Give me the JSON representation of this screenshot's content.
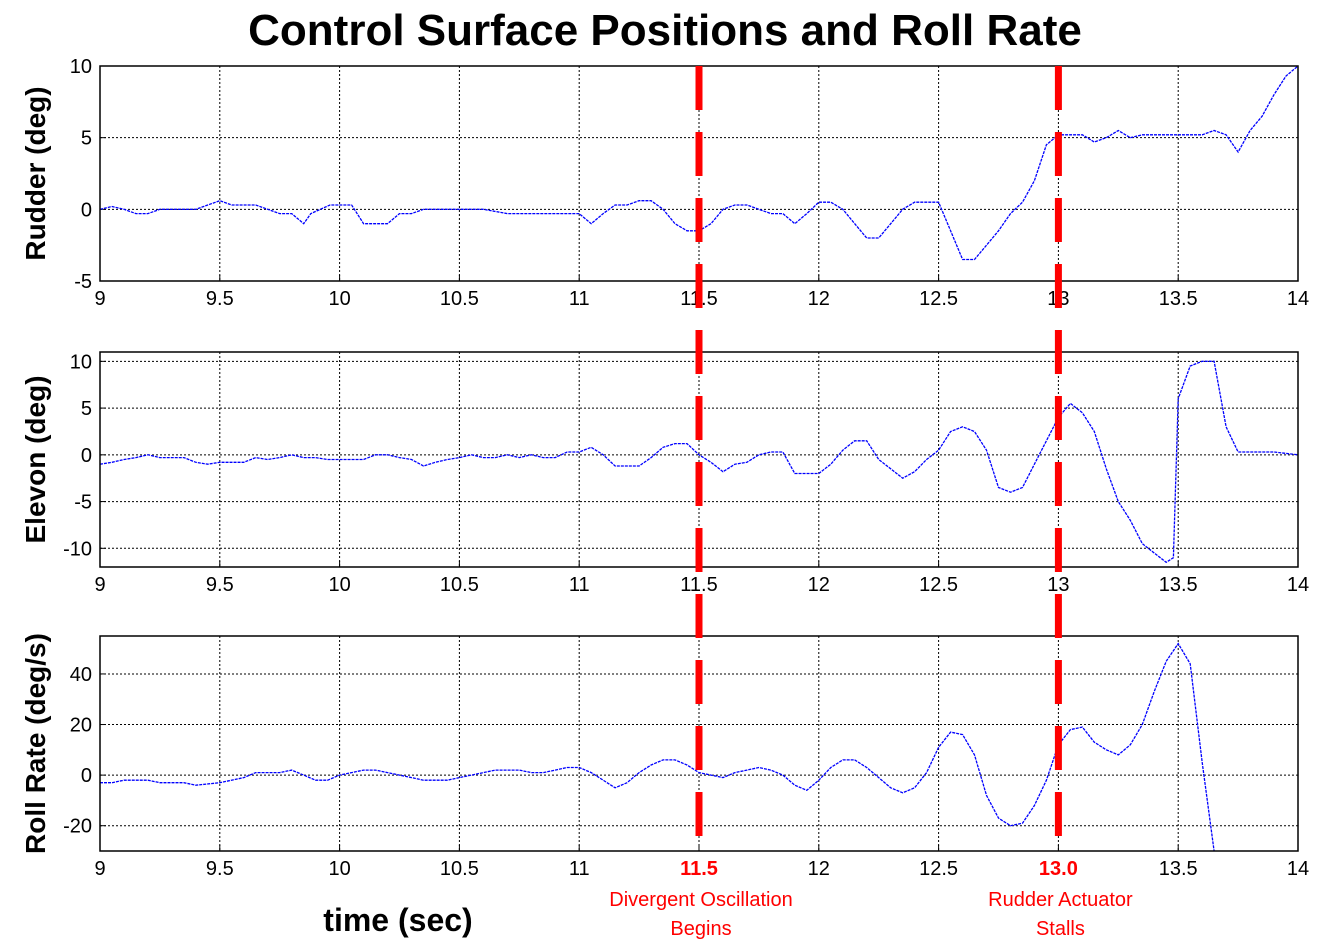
{
  "title": "Control Surface Positions and Roll Rate",
  "chart_data": [
    {
      "type": "line",
      "ylabel": "Rudder (deg)",
      "xlim": [
        9,
        14
      ],
      "ylim": [
        -5,
        10
      ],
      "xticks": [
        "9",
        "9.5",
        "10",
        "10.5",
        "11",
        "11.5",
        "12",
        "12.5",
        "13",
        "13.5",
        "14"
      ],
      "yticks": [
        "-5",
        "0",
        "5",
        "10"
      ],
      "grid": true,
      "series": [
        {
          "color": "#0000ff",
          "x": [
            9.0,
            9.05,
            9.1,
            9.15,
            9.2,
            9.25,
            9.3,
            9.35,
            9.4,
            9.45,
            9.5,
            9.55,
            9.6,
            9.65,
            9.7,
            9.75,
            9.8,
            9.85,
            9.88,
            9.92,
            9.96,
            10.0,
            10.05,
            10.1,
            10.15,
            10.2,
            10.25,
            10.3,
            10.35,
            10.4,
            10.5,
            10.6,
            10.7,
            10.8,
            10.9,
            11.0,
            11.05,
            11.1,
            11.15,
            11.2,
            11.25,
            11.3,
            11.35,
            11.4,
            11.45,
            11.5,
            11.55,
            11.6,
            11.65,
            11.7,
            11.75,
            11.8,
            11.85,
            11.9,
            11.95,
            12.0,
            12.05,
            12.1,
            12.15,
            12.2,
            12.25,
            12.3,
            12.35,
            12.4,
            12.45,
            12.5,
            12.55,
            12.6,
            12.65,
            12.7,
            12.75,
            12.8,
            12.85,
            12.9,
            12.95,
            13.0,
            13.05,
            13.1,
            13.15,
            13.2,
            13.25,
            13.3,
            13.35,
            13.4,
            13.45,
            13.5,
            13.55,
            13.6,
            13.65,
            13.7,
            13.75,
            13.8,
            13.85,
            13.9,
            13.95,
            14.0
          ],
          "y": [
            0.0,
            0.2,
            0.0,
            -0.3,
            -0.3,
            0.0,
            0.0,
            0.0,
            0.0,
            0.3,
            0.6,
            0.3,
            0.3,
            0.3,
            0.0,
            -0.3,
            -0.3,
            -1.0,
            -0.3,
            0.0,
            0.3,
            0.3,
            0.3,
            -1.0,
            -1.0,
            -1.0,
            -0.3,
            -0.3,
            0.0,
            0.0,
            0.0,
            0.0,
            -0.3,
            -0.3,
            -0.3,
            -0.3,
            -1.0,
            -0.3,
            0.3,
            0.3,
            0.6,
            0.6,
            0.0,
            -1.0,
            -1.5,
            -1.5,
            -1.0,
            0.0,
            0.3,
            0.3,
            0.0,
            -0.3,
            -0.3,
            -1.0,
            -0.3,
            0.5,
            0.5,
            0.0,
            -1.0,
            -2.0,
            -2.0,
            -1.0,
            0.0,
            0.5,
            0.5,
            0.5,
            -1.5,
            -3.5,
            -3.5,
            -2.5,
            -1.5,
            -0.3,
            0.5,
            2.0,
            4.5,
            5.2,
            5.2,
            5.2,
            4.7,
            5.0,
            5.5,
            5.0,
            5.2,
            5.2,
            5.2,
            5.2,
            5.2,
            5.2,
            5.5,
            5.2,
            4.0,
            5.5,
            6.5,
            8.0,
            9.3,
            10.0
          ]
        }
      ]
    },
    {
      "type": "line",
      "ylabel": "Elevon  (deg)",
      "xlim": [
        9,
        14
      ],
      "ylim": [
        -12,
        11
      ],
      "xticks": [
        "9",
        "9.5",
        "10",
        "10.5",
        "11",
        "11.5",
        "12",
        "12.5",
        "13",
        "13.5",
        "14"
      ],
      "yticks": [
        "-10",
        "-5",
        "0",
        "5",
        "10"
      ],
      "grid": true,
      "series": [
        {
          "color": "#0000ff",
          "x": [
            9.0,
            9.05,
            9.1,
            9.15,
            9.2,
            9.25,
            9.3,
            9.35,
            9.4,
            9.45,
            9.5,
            9.6,
            9.65,
            9.7,
            9.75,
            9.8,
            9.85,
            9.9,
            9.95,
            10.0,
            10.1,
            10.15,
            10.2,
            10.25,
            10.3,
            10.35,
            10.4,
            10.45,
            10.5,
            10.55,
            10.6,
            10.65,
            10.7,
            10.75,
            10.8,
            10.85,
            10.9,
            10.95,
            11.0,
            11.05,
            11.1,
            11.15,
            11.2,
            11.25,
            11.3,
            11.35,
            11.4,
            11.45,
            11.5,
            11.55,
            11.6,
            11.65,
            11.7,
            11.75,
            11.8,
            11.85,
            11.9,
            11.95,
            12.0,
            12.05,
            12.1,
            12.15,
            12.2,
            12.25,
            12.3,
            12.35,
            12.4,
            12.45,
            12.5,
            12.55,
            12.6,
            12.65,
            12.7,
            12.75,
            12.8,
            12.85,
            12.9,
            12.95,
            13.0,
            13.05,
            13.1,
            13.15,
            13.2,
            13.25,
            13.3,
            13.35,
            13.4,
            13.45,
            13.48,
            13.5,
            13.55,
            13.6,
            13.65,
            13.7,
            13.75,
            13.8,
            13.9,
            14.0
          ],
          "y": [
            -1.0,
            -0.8,
            -0.5,
            -0.3,
            0.0,
            -0.3,
            -0.3,
            -0.3,
            -0.8,
            -1.0,
            -0.8,
            -0.8,
            -0.3,
            -0.5,
            -0.3,
            0.0,
            -0.3,
            -0.3,
            -0.5,
            -0.5,
            -0.5,
            0.0,
            0.0,
            -0.3,
            -0.5,
            -1.2,
            -0.8,
            -0.5,
            -0.3,
            0.0,
            -0.3,
            -0.3,
            0.0,
            -0.3,
            0.0,
            -0.3,
            -0.3,
            0.3,
            0.3,
            0.8,
            0.0,
            -1.2,
            -1.2,
            -1.2,
            -0.3,
            0.8,
            1.2,
            1.2,
            0.0,
            -0.8,
            -1.8,
            -1.0,
            -0.8,
            0.0,
            0.3,
            0.3,
            -2.0,
            -2.0,
            -2.0,
            -1.0,
            0.5,
            1.5,
            1.5,
            -0.5,
            -1.5,
            -2.5,
            -1.8,
            -0.5,
            0.5,
            2.5,
            3.0,
            2.5,
            0.5,
            -3.5,
            -4.0,
            -3.5,
            -1.0,
            1.5,
            4.0,
            5.5,
            4.5,
            2.5,
            -1.5,
            -5.0,
            -7.0,
            -9.5,
            -10.5,
            -11.5,
            -11.0,
            6.0,
            9.5,
            10.0,
            10.0,
            3.0,
            0.3,
            0.3,
            0.3,
            0.0
          ]
        }
      ]
    },
    {
      "type": "line",
      "ylabel": "Roll Rate (deg/s)",
      "xlabel": "time  (sec)",
      "xlim": [
        9,
        14
      ],
      "ylim": [
        -30,
        55
      ],
      "xticks": [
        "9",
        "9.5",
        "10",
        "10.5",
        "11",
        "11.5",
        "12",
        "12.5",
        "13",
        "13.5",
        "14"
      ],
      "yticks": [
        "-20",
        "0",
        "20",
        "40"
      ],
      "grid": true,
      "series": [
        {
          "color": "#0000ff",
          "x": [
            9.0,
            9.05,
            9.1,
            9.2,
            9.25,
            9.3,
            9.35,
            9.4,
            9.5,
            9.6,
            9.65,
            9.7,
            9.75,
            9.8,
            9.85,
            9.9,
            9.95,
            10.0,
            10.05,
            10.1,
            10.15,
            10.2,
            10.25,
            10.3,
            10.35,
            10.4,
            10.45,
            10.5,
            10.55,
            10.6,
            10.65,
            10.7,
            10.75,
            10.8,
            10.85,
            10.9,
            10.95,
            11.0,
            11.05,
            11.1,
            11.15,
            11.2,
            11.25,
            11.3,
            11.35,
            11.4,
            11.45,
            11.5,
            11.55,
            11.6,
            11.65,
            11.7,
            11.75,
            11.8,
            11.85,
            11.9,
            11.95,
            12.0,
            12.05,
            12.1,
            12.15,
            12.2,
            12.25,
            12.3,
            12.35,
            12.4,
            12.45,
            12.5,
            12.55,
            12.6,
            12.65,
            12.7,
            12.75,
            12.8,
            12.85,
            12.9,
            12.95,
            13.0,
            13.05,
            13.1,
            13.15,
            13.2,
            13.25,
            13.3,
            13.35,
            13.4,
            13.45,
            13.5,
            13.55,
            13.6,
            13.65
          ],
          "y": [
            -3,
            -3,
            -2,
            -2,
            -3,
            -3,
            -3,
            -4,
            -3,
            -1,
            1,
            1,
            1,
            2,
            0,
            -2,
            -2,
            0,
            1,
            2,
            2,
            1,
            0,
            -1,
            -2,
            -2,
            -2,
            -1,
            0,
            1,
            2,
            2,
            2,
            1,
            1,
            2,
            3,
            3,
            1,
            -2,
            -5,
            -3,
            1,
            4,
            6,
            6,
            4,
            1,
            0,
            -1,
            1,
            2,
            3,
            2,
            0,
            -4,
            -6,
            -2,
            3,
            6,
            6,
            3,
            -1,
            -5,
            -7,
            -5,
            1,
            11,
            17,
            16,
            8,
            -8,
            -17,
            -20,
            -19,
            -12,
            -2,
            12,
            18,
            19,
            13,
            10,
            8,
            12,
            20,
            33,
            45,
            52,
            44,
            5,
            -30
          ]
        }
      ]
    }
  ],
  "markers": [
    {
      "x": 11.5,
      "label": "11.5",
      "note_line1": "Divergent Oscillation",
      "note_line2": "Begins"
    },
    {
      "x": 13.0,
      "label": "13.0",
      "note_line1": "Rudder Actuator",
      "note_line2": "Stalls"
    }
  ],
  "colors": {
    "series": "#0000ff",
    "marker": "#ff0000",
    "grid": "#000000"
  }
}
